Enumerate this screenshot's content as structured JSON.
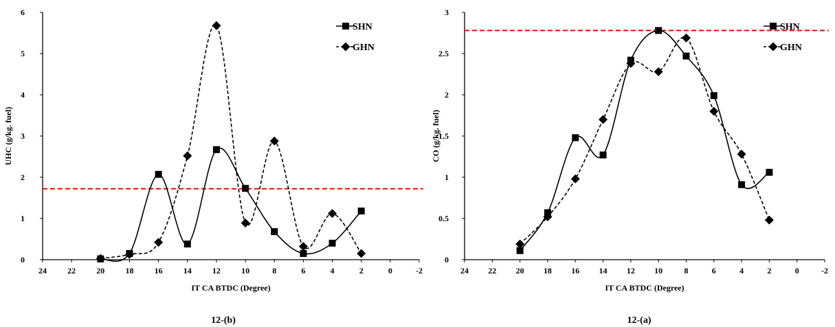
{
  "chart_data": [
    {
      "type": "line",
      "caption": "12-(b)",
      "xlabel": "IT CA BTDC (Degree)",
      "ylabel": "UHC (g/kg. fuel)",
      "x_ticks": [
        24,
        22,
        20,
        18,
        16,
        14,
        12,
        10,
        8,
        6,
        4,
        2,
        0,
        -2
      ],
      "y_ticks": [
        0,
        1,
        2,
        3,
        4,
        5,
        6
      ],
      "xlim": [
        24,
        -2
      ],
      "ylim": [
        0,
        6
      ],
      "reference_line": {
        "y": 1.72,
        "color": "#ff0000",
        "style": "dashed"
      },
      "legend_position": "top-right",
      "series": [
        {
          "name": "SHN",
          "marker": "square",
          "line": "solid",
          "x": [
            20,
            18,
            16,
            14,
            12,
            10,
            8,
            6,
            4,
            2
          ],
          "y": [
            0.02,
            0.15,
            2.07,
            0.38,
            2.67,
            1.73,
            0.68,
            0.15,
            0.4,
            1.18
          ]
        },
        {
          "name": "GHN",
          "marker": "diamond",
          "line": "dashed",
          "x": [
            20,
            18,
            16,
            14,
            12,
            10,
            8,
            6,
            4,
            2
          ],
          "y": [
            0.03,
            0.13,
            0.42,
            2.52,
            5.68,
            0.89,
            2.88,
            0.32,
            1.12,
            0.15
          ]
        }
      ]
    },
    {
      "type": "line",
      "caption": "12-(a)",
      "xlabel": "IT CA BTDC (Degree)",
      "ylabel": "CO (g/kg. fuel)",
      "x_ticks": [
        24,
        22,
        20,
        18,
        16,
        14,
        12,
        10,
        8,
        6,
        4,
        2,
        0,
        -2
      ],
      "y_ticks": [
        0,
        0.5,
        1,
        1.5,
        2,
        2.5,
        3
      ],
      "xlim": [
        24,
        -2
      ],
      "ylim": [
        0,
        3
      ],
      "reference_line": {
        "y": 2.78,
        "color": "#ff0000",
        "style": "dashed"
      },
      "legend_position": "top-right",
      "series": [
        {
          "name": "SHN",
          "marker": "square",
          "line": "solid",
          "x": [
            20,
            18,
            16,
            14,
            12,
            10,
            8,
            6,
            4,
            2
          ],
          "y": [
            0.11,
            0.57,
            1.48,
            1.27,
            2.42,
            2.78,
            2.47,
            1.99,
            0.91,
            1.06
          ]
        },
        {
          "name": "GHN",
          "marker": "diamond",
          "line": "dashed",
          "x": [
            20,
            18,
            16,
            14,
            12,
            10,
            8,
            6,
            4,
            2
          ],
          "y": [
            0.19,
            0.52,
            0.98,
            1.7,
            2.38,
            2.28,
            2.69,
            1.8,
            1.28,
            0.48
          ]
        }
      ]
    }
  ]
}
